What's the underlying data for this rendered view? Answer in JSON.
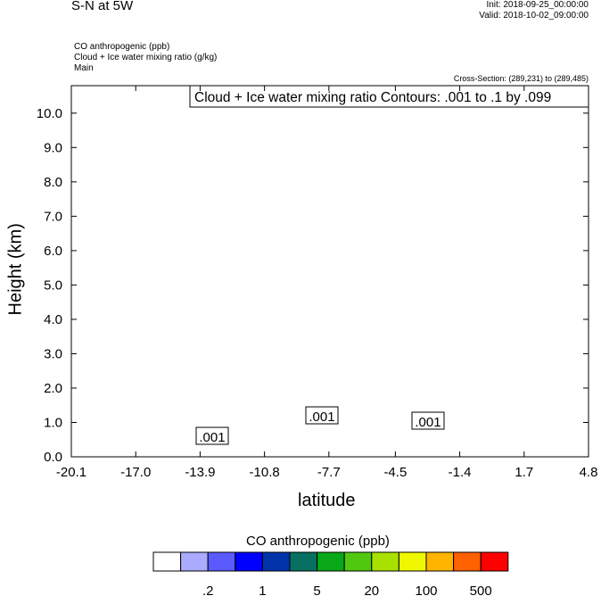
{
  "header": {
    "title": "S-N at 5W",
    "init": "Init: 2018-09-25_00:00:00",
    "valid": "Valid: 2018-10-02_09:00:00",
    "field1": "CO anthropogenic   (ppb)",
    "field2": "Cloud + Ice water mixing ratio   (g/kg)",
    "field3": "Main",
    "cross_section": "Cross-Section: (289,231) to (289,485)"
  },
  "chart_data": {
    "type": "heatmap",
    "title": "S-N at 5W",
    "xlabel": "latitude",
    "ylabel": "Height (km)",
    "xlim": [
      -20.1,
      4.8
    ],
    "ylim": [
      0,
      10.8
    ],
    "xticks": [
      "-20.1",
      "-17.0",
      "-13.9",
      "-10.8",
      "-7.7",
      "-4.5",
      "-1.4",
      "1.7",
      "4.8"
    ],
    "yticks": [
      "0.0",
      "1.0",
      "2.0",
      "3.0",
      "4.0",
      "5.0",
      "6.0",
      "7.0",
      "8.0",
      "9.0",
      "10.0"
    ],
    "contour_annotation": "Cloud + Ice water mixing ratio Contours: .001 to .1 by .099",
    "contour_labels": [
      ".001",
      ".001",
      ".001"
    ],
    "colorbar": {
      "title": "CO anthropogenic  (ppb)",
      "colors": [
        "#ffffff",
        "#aaaaff",
        "#5a5aff",
        "#0000ff",
        "#0033aa",
        "#077060",
        "#08a818",
        "#50c810",
        "#a8e000",
        "#f0f800",
        "#ffb400",
        "#ff6000",
        "#ff0000"
      ],
      "labels": [
        ".2",
        "1",
        "5",
        "20",
        "100",
        "500"
      ]
    }
  }
}
